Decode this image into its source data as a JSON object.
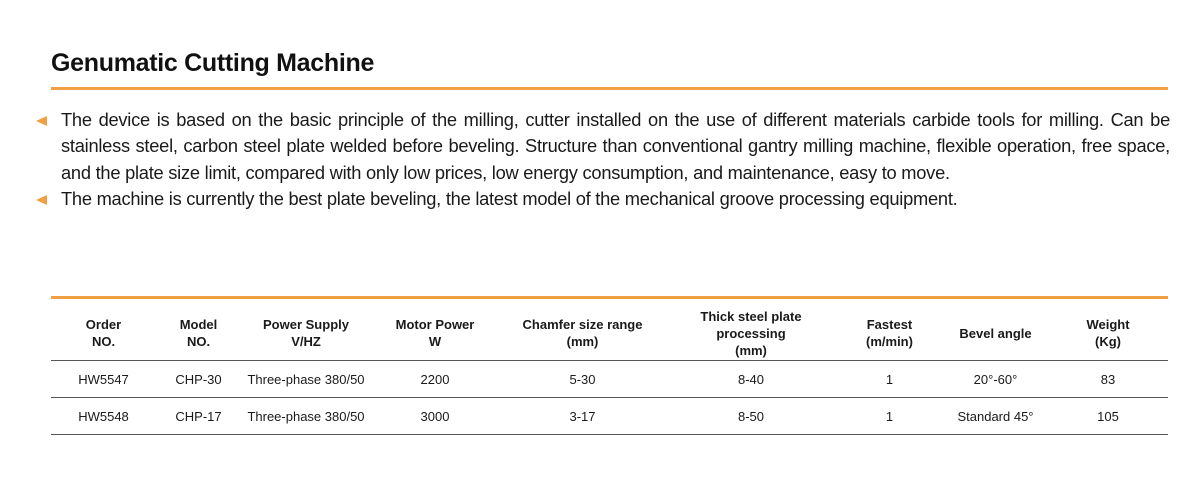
{
  "title": "Genumatic Cutting Machine",
  "colors": {
    "accent": "#f0a040",
    "text": "#1a1a1a",
    "table_rule": "#555555"
  },
  "bullet_icon": "left-pointing-triangle-icon",
  "bullets": [
    "The device is based on the basic principle of the milling, cutter installed on the use of different materials carbide tools for milling. Can be stainless steel, carbon steel plate welded before beveling. Structure than conventional gantry milling machine, flexible operation, free space, and the plate size limit, compared with only low prices, low energy consumption, and maintenance, easy to move.",
    "The machine is currently the best plate beveling, the latest model of the mechanical groove processing equipment."
  ],
  "table": {
    "headers": [
      [
        "Order",
        "NO."
      ],
      [
        "Model",
        "NO."
      ],
      [
        "Power Supply",
        "V/HZ"
      ],
      [
        "Motor Power",
        "W"
      ],
      [
        "Chamfer size range",
        "(mm)"
      ],
      [
        "Thick steel plate processing",
        "(mm)"
      ],
      [
        "Fastest",
        "(m/min)"
      ],
      [
        "Bevel angle"
      ],
      [
        "Weight",
        "(Kg)"
      ]
    ],
    "rows": [
      [
        "HW5547",
        "CHP-30",
        "Three-phase 380/50",
        "2200",
        "5-30",
        "8-40",
        "1",
        "20°-60°",
        "83"
      ],
      [
        "HW5548",
        "CHP-17",
        "Three-phase 380/50",
        "3000",
        "3-17",
        "8-50",
        "1",
        "Standard 45°",
        "105"
      ]
    ]
  }
}
